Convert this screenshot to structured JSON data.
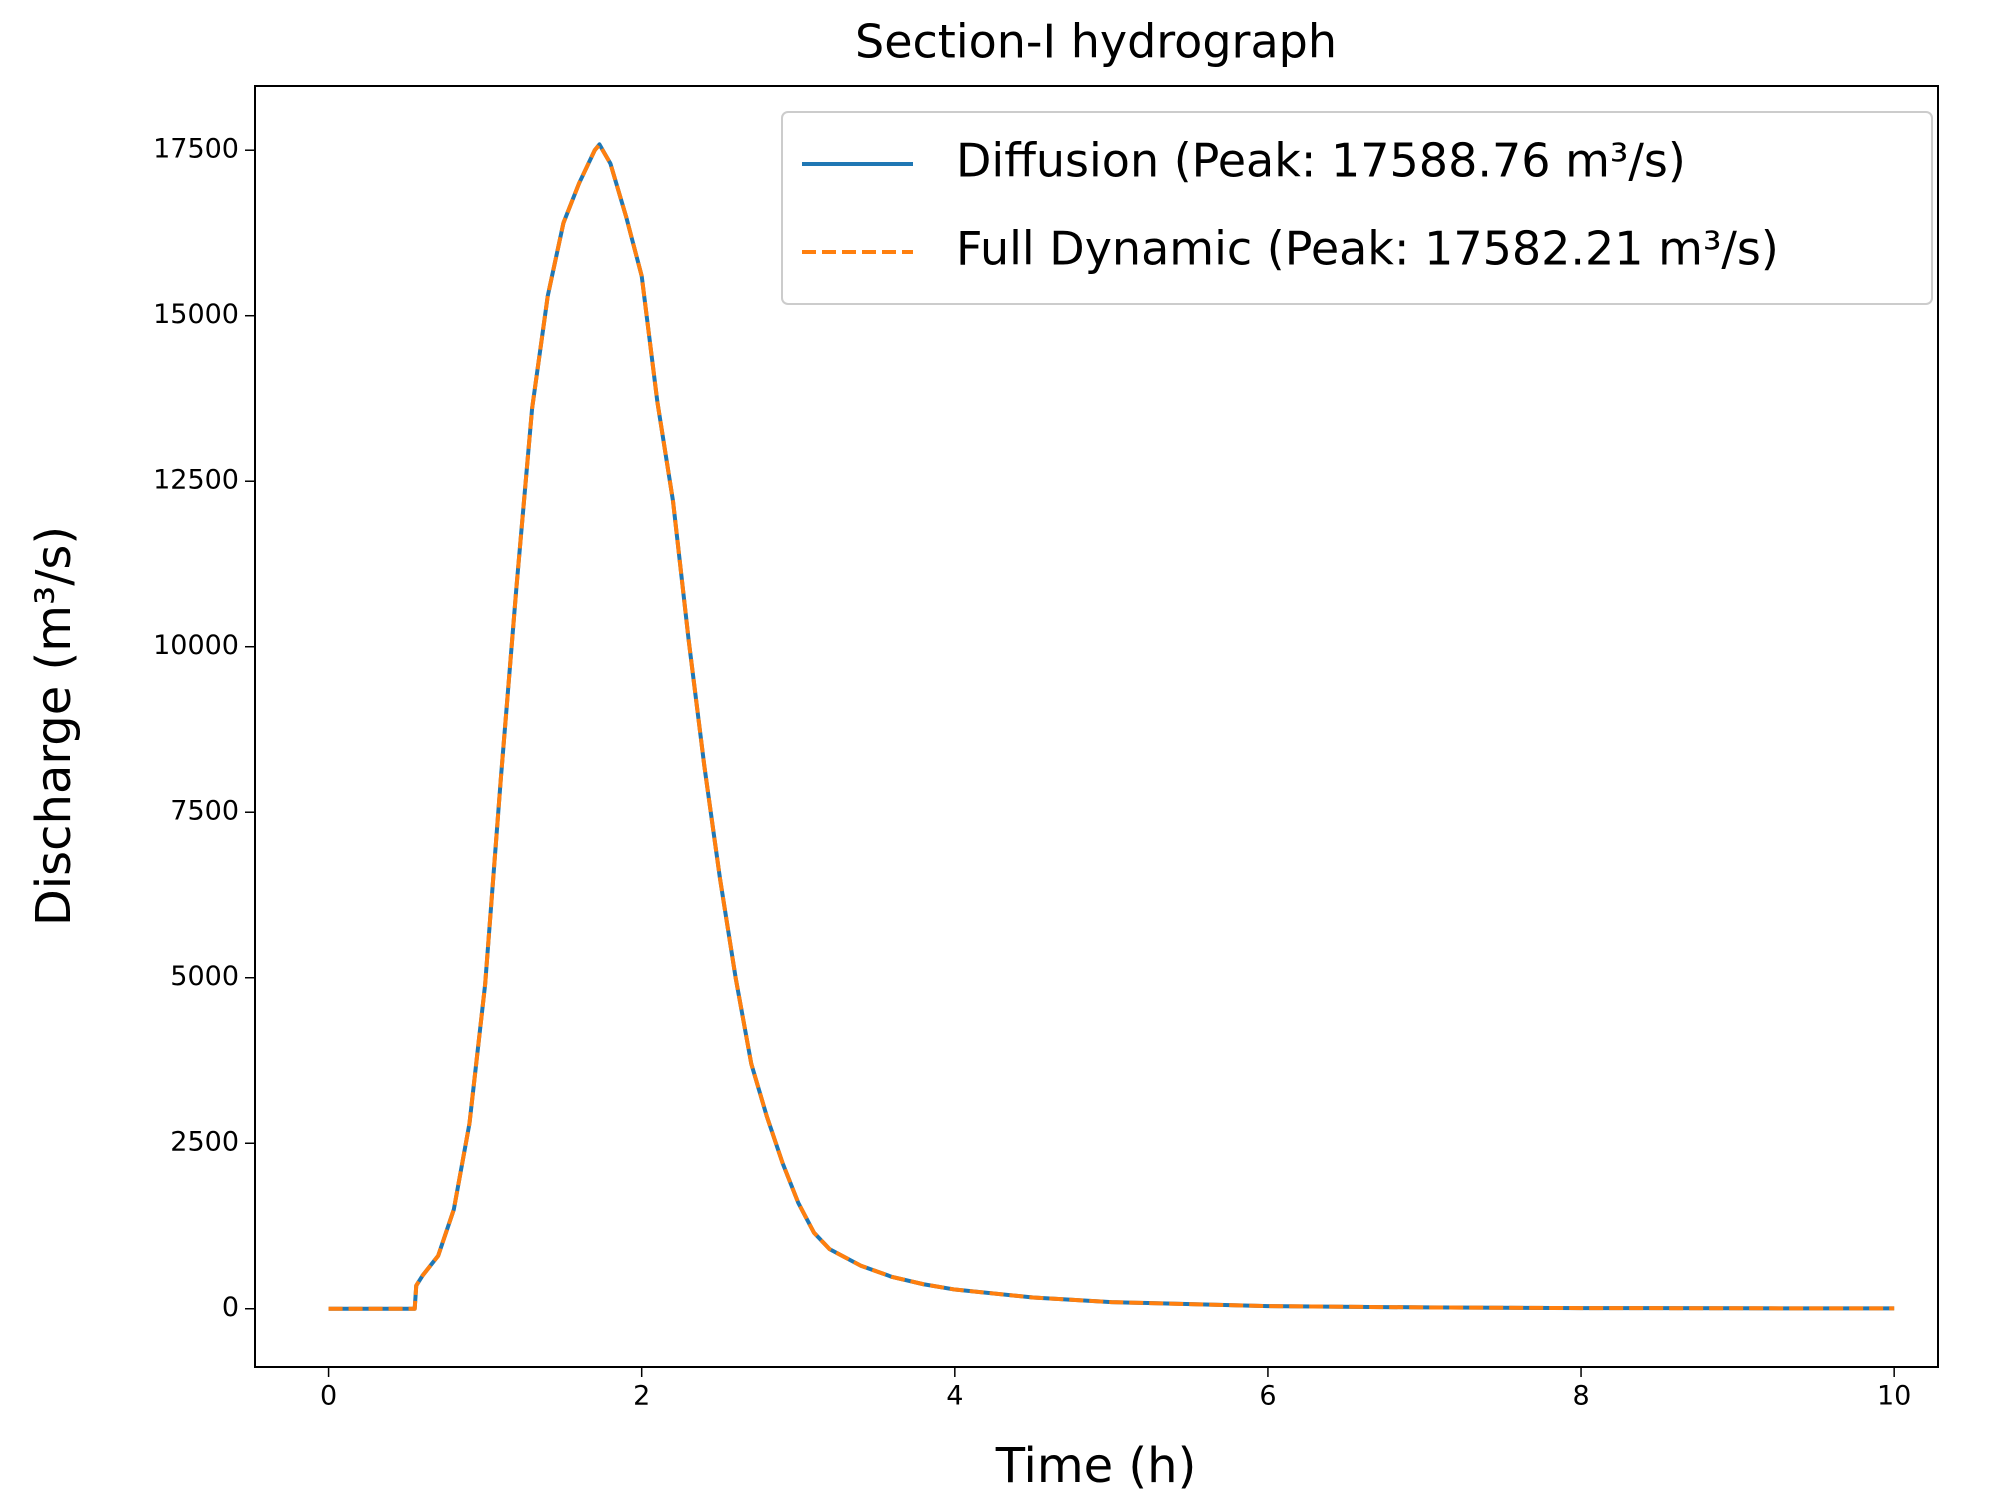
{
  "chart_data": {
    "type": "line",
    "title": "Section-I hydrograph",
    "x_label": "Time (h)",
    "y_label": "Discharge (m³/s)",
    "x": [
      0,
      0.5,
      0.55,
      0.56,
      0.6,
      0.7,
      0.8,
      0.9,
      1.0,
      1.1,
      1.2,
      1.3,
      1.4,
      1.5,
      1.6,
      1.7,
      1.73,
      1.8,
      1.9,
      2.0,
      2.1,
      2.2,
      2.3,
      2.4,
      2.5,
      2.6,
      2.7,
      2.8,
      2.9,
      3.0,
      3.1,
      3.2,
      3.4,
      3.6,
      3.8,
      4.0,
      4.5,
      5.0,
      6.0,
      7.0,
      8.0,
      9.0,
      10.0
    ],
    "series": [
      {
        "name": "Diffusion  (Peak: 17588.76 m³/s)",
        "color": "#1f77b4",
        "style": "solid",
        "values": [
          0,
          0,
          0,
          350,
          500,
          800,
          1500,
          2800,
          4900,
          8000,
          10900,
          13600,
          15300,
          16400,
          17000,
          17500,
          17588.76,
          17300,
          16500,
          15600,
          13700,
          12200,
          10100,
          8200,
          6500,
          5000,
          3700,
          2900,
          2200,
          1600,
          1150,
          900,
          650,
          480,
          370,
          290,
          170,
          100,
          40,
          20,
          10,
          7,
          5
        ]
      },
      {
        "name": "Full Dynamic (Peak: 17582.21 m³/s)",
        "color": "#ff7f0e",
        "style": "dashed",
        "values": [
          0,
          0,
          0,
          350,
          500,
          800,
          1500,
          2800,
          4900,
          8000,
          10900,
          13600,
          15300,
          16400,
          17000,
          17500,
          17582.21,
          17300,
          16500,
          15600,
          13700,
          12200,
          10100,
          8200,
          6500,
          5000,
          3700,
          2900,
          2200,
          1600,
          1150,
          900,
          650,
          480,
          370,
          290,
          170,
          100,
          40,
          20,
          10,
          7,
          5
        ]
      }
    ],
    "xlim": [
      -0.47,
      10.28
    ],
    "ylim": [
      -880,
      18470
    ],
    "xticks": [
      0,
      2,
      4,
      6,
      8,
      10
    ],
    "yticks": [
      0,
      2500,
      5000,
      7500,
      10000,
      12500,
      15000,
      17500
    ],
    "grid": false,
    "legend": "upper right"
  }
}
